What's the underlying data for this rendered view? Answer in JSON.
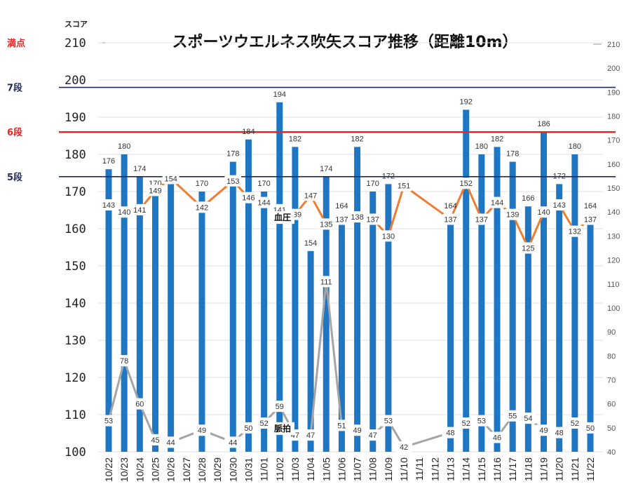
{
  "chart_data": {
    "type": "bar",
    "title": "スポーツウエルネス吹矢スコア推移（距離10m）",
    "ylabel": "スコア",
    "ylim": [
      100,
      210
    ],
    "y2lim": [
      40,
      210
    ],
    "grid": true,
    "categories": [
      "10/22",
      "10/23",
      "10/24",
      "10/25",
      "10/26",
      "10/27",
      "10/28",
      "10/29",
      "10/30",
      "10/31",
      "11/01",
      "11/02",
      "11/03",
      "11/04",
      "11/05",
      "11/06",
      "11/07",
      "11/08",
      "11/09",
      "11/10",
      "11/11",
      "11/12",
      "11/13",
      "11/14",
      "11/15",
      "11/16",
      "11/17",
      "11/18",
      "11/19",
      "11/20",
      "11/21",
      "11/22"
    ],
    "left_ticks": [
      100,
      110,
      120,
      130,
      140,
      150,
      160,
      170,
      180,
      190,
      200,
      210
    ],
    "right_ticks": [
      40,
      50,
      60,
      70,
      80,
      90,
      100,
      110,
      120,
      130,
      140,
      150,
      160,
      170,
      180,
      190,
      200,
      210
    ],
    "series": [
      {
        "kind": "bar",
        "color": "#1f77c4",
        "values": [
          176,
          180,
          174,
          170,
          172,
          null,
          170,
          null,
          178,
          184,
          170,
          194,
          182,
          154,
          174,
          164,
          182,
          170,
          172,
          null,
          null,
          null,
          164,
          192,
          180,
          182,
          178,
          166,
          186,
          172,
          180,
          164
        ]
      },
      {
        "name": "血圧",
        "kind": "line",
        "axis": "right",
        "color": "#ed7d31",
        "values": [
          143,
          140,
          141,
          149,
          154,
          null,
          142,
          null,
          153,
          146,
          144,
          141,
          139,
          147,
          135,
          137,
          138,
          137,
          130,
          151,
          null,
          null,
          137,
          152,
          137,
          144,
          139,
          125,
          140,
          143,
          132,
          137
        ]
      },
      {
        "name": "脈拍",
        "kind": "line",
        "axis": "right",
        "color": "#a5a5a5",
        "values": [
          53,
          78,
          60,
          45,
          44,
          null,
          49,
          null,
          44,
          50,
          52,
          59,
          47,
          47,
          111,
          51,
          49,
          47,
          53,
          42,
          null,
          null,
          48,
          52,
          53,
          46,
          55,
          54,
          49,
          48,
          52,
          50
        ]
      }
    ],
    "reference_lines": [
      {
        "label": "満点",
        "value": 210,
        "color": "#e32626",
        "drawn": false
      },
      {
        "label": "7段",
        "value": 198,
        "color": "#1f2a5a",
        "drawn": true
      },
      {
        "label": "6段",
        "value": 186,
        "color": "#e32626",
        "drawn": true
      },
      {
        "label": "5段",
        "value": 174,
        "color": "#1f2a5a",
        "drawn": true
      }
    ]
  }
}
